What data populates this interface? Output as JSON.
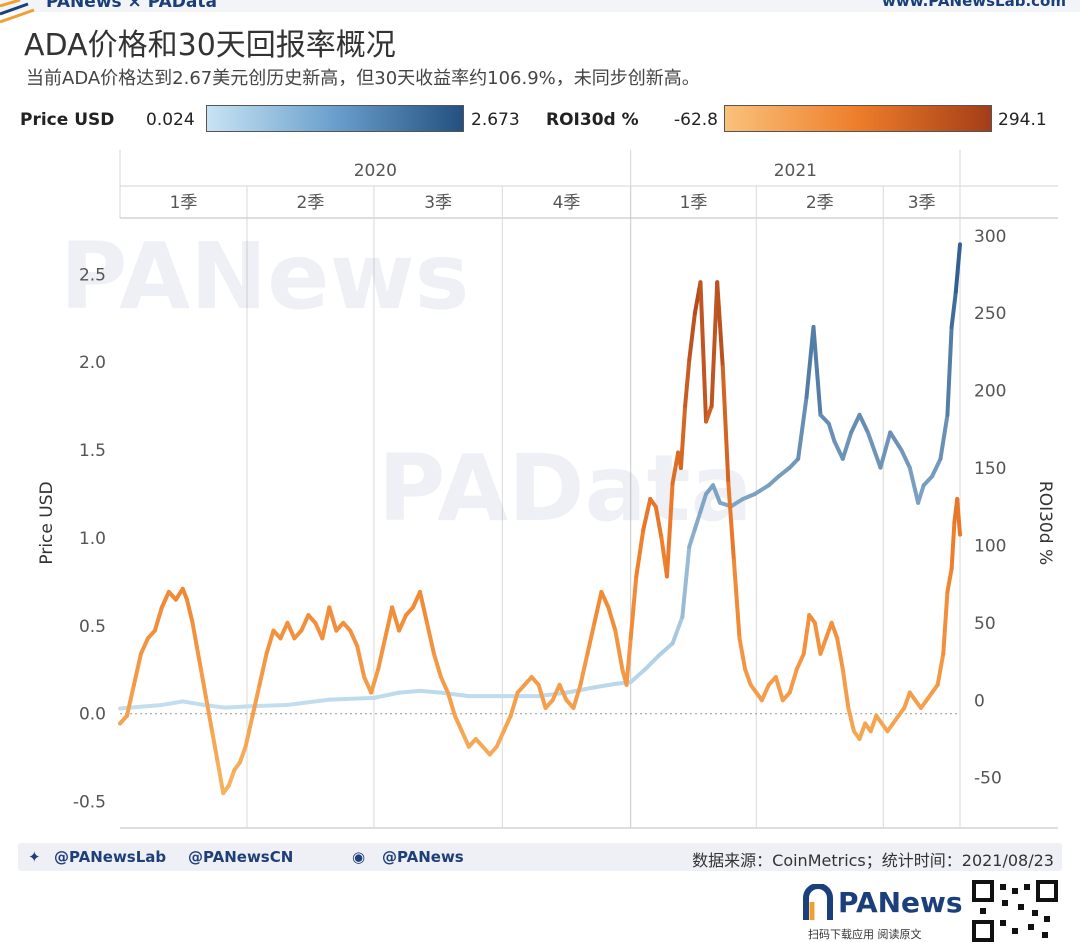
{
  "header": {
    "brand": "PANews × PAData",
    "site": "www.PANewsLab.com"
  },
  "title": "ADA价格和30天回报率概况",
  "subtitle": "当前ADA价格达到2.67美元创历史新高，但30天收益率约106.9%，未同步创新高。",
  "legend": {
    "price_label": "Price USD",
    "price_min": "0.024",
    "price_max": "2.673",
    "roi_label": "ROI30d %",
    "roi_min": "-62.8",
    "roi_max": "294.1"
  },
  "colors": {
    "price_light": "#c3dff0",
    "price_dark": "#2a5a8c",
    "roi_light": "#f7b462",
    "roi_mid": "#ef7f2b",
    "roi_dark": "#a8401a"
  },
  "watermarks": [
    "PANews",
    "PAData"
  ],
  "chart_data": {
    "type": "line",
    "x_unit": "day offset from 2020-01-01",
    "x_range": [
      0,
      602
    ],
    "years": [
      {
        "label": "2020",
        "start": 0,
        "end": 366
      },
      {
        "label": "2021",
        "start": 366,
        "end": 602
      }
    ],
    "quarters": [
      {
        "label": "1季",
        "start": 0,
        "end": 91
      },
      {
        "label": "2季",
        "start": 91,
        "end": 182
      },
      {
        "label": "3季",
        "start": 182,
        "end": 274
      },
      {
        "label": "4季",
        "start": 274,
        "end": 366
      },
      {
        "label": "1季",
        "start": 366,
        "end": 456
      },
      {
        "label": "2季",
        "start": 456,
        "end": 547
      },
      {
        "label": "3季",
        "start": 547,
        "end": 602
      }
    ],
    "y_left": {
      "label": "Price USD",
      "range": [
        -0.65,
        2.82
      ],
      "ticks": [
        -0.5,
        0.0,
        0.5,
        1.0,
        1.5,
        2.0,
        2.5
      ],
      "tick_labels": [
        "-0.5",
        "0.0",
        "0.5",
        "1.0",
        "1.5",
        "2.0",
        "2.5"
      ]
    },
    "y_right": {
      "label": "ROI30d %",
      "range": [
        -82.5,
        311.5
      ],
      "ticks": [
        -50,
        0,
        50,
        100,
        150,
        200,
        250,
        300
      ],
      "tick_labels": [
        "-50",
        "0",
        "50",
        "100",
        "150",
        "200",
        "250",
        "300"
      ]
    },
    "series": [
      {
        "name": "Price USD",
        "axis": "left",
        "points": [
          [
            0,
            0.03
          ],
          [
            30,
            0.05
          ],
          [
            45,
            0.07
          ],
          [
            60,
            0.05
          ],
          [
            75,
            0.035
          ],
          [
            100,
            0.045
          ],
          [
            120,
            0.05
          ],
          [
            150,
            0.08
          ],
          [
            182,
            0.09
          ],
          [
            200,
            0.12
          ],
          [
            215,
            0.13
          ],
          [
            230,
            0.12
          ],
          [
            250,
            0.1
          ],
          [
            270,
            0.1
          ],
          [
            300,
            0.1
          ],
          [
            320,
            0.12
          ],
          [
            340,
            0.15
          ],
          [
            355,
            0.17
          ],
          [
            366,
            0.18
          ],
          [
            376,
            0.25
          ],
          [
            386,
            0.33
          ],
          [
            396,
            0.4
          ],
          [
            403,
            0.55
          ],
          [
            408,
            0.95
          ],
          [
            412,
            1.05
          ],
          [
            416,
            1.15
          ],
          [
            420,
            1.25
          ],
          [
            425,
            1.3
          ],
          [
            430,
            1.2
          ],
          [
            438,
            1.18
          ],
          [
            446,
            1.22
          ],
          [
            455,
            1.25
          ],
          [
            465,
            1.3
          ],
          [
            472,
            1.35
          ],
          [
            480,
            1.4
          ],
          [
            486,
            1.45
          ],
          [
            492,
            1.8
          ],
          [
            497,
            2.2
          ],
          [
            502,
            1.7
          ],
          [
            508,
            1.65
          ],
          [
            512,
            1.55
          ],
          [
            518,
            1.45
          ],
          [
            524,
            1.6
          ],
          [
            530,
            1.7
          ],
          [
            536,
            1.6
          ],
          [
            545,
            1.4
          ],
          [
            552,
            1.6
          ],
          [
            560,
            1.5
          ],
          [
            566,
            1.4
          ],
          [
            572,
            1.2
          ],
          [
            576,
            1.3
          ],
          [
            582,
            1.35
          ],
          [
            588,
            1.45
          ],
          [
            593,
            1.7
          ],
          [
            596,
            2.2
          ],
          [
            599,
            2.4
          ],
          [
            602,
            2.67
          ]
        ]
      },
      {
        "name": "ROI30d %",
        "axis": "right",
        "points": [
          [
            0,
            -15
          ],
          [
            5,
            -10
          ],
          [
            10,
            10
          ],
          [
            15,
            30
          ],
          [
            20,
            40
          ],
          [
            25,
            45
          ],
          [
            30,
            60
          ],
          [
            35,
            70
          ],
          [
            40,
            65
          ],
          [
            45,
            72
          ],
          [
            48,
            65
          ],
          [
            52,
            50
          ],
          [
            55,
            35
          ],
          [
            58,
            20
          ],
          [
            62,
            0
          ],
          [
            66,
            -20
          ],
          [
            70,
            -40
          ],
          [
            74,
            -60
          ],
          [
            78,
            -55
          ],
          [
            82,
            -45
          ],
          [
            86,
            -40
          ],
          [
            90,
            -30
          ],
          [
            95,
            -10
          ],
          [
            100,
            10
          ],
          [
            105,
            30
          ],
          [
            110,
            45
          ],
          [
            115,
            40
          ],
          [
            120,
            50
          ],
          [
            125,
            40
          ],
          [
            130,
            45
          ],
          [
            135,
            55
          ],
          [
            140,
            50
          ],
          [
            145,
            40
          ],
          [
            150,
            60
          ],
          [
            155,
            45
          ],
          [
            160,
            50
          ],
          [
            165,
            45
          ],
          [
            170,
            35
          ],
          [
            175,
            15
          ],
          [
            180,
            5
          ],
          [
            185,
            20
          ],
          [
            190,
            40
          ],
          [
            195,
            60
          ],
          [
            200,
            45
          ],
          [
            205,
            55
          ],
          [
            210,
            60
          ],
          [
            215,
            70
          ],
          [
            220,
            50
          ],
          [
            225,
            30
          ],
          [
            230,
            15
          ],
          [
            235,
            5
          ],
          [
            240,
            -10
          ],
          [
            245,
            -20
          ],
          [
            250,
            -30
          ],
          [
            255,
            -25
          ],
          [
            260,
            -30
          ],
          [
            265,
            -35
          ],
          [
            270,
            -30
          ],
          [
            275,
            -20
          ],
          [
            280,
            -10
          ],
          [
            285,
            5
          ],
          [
            290,
            10
          ],
          [
            295,
            15
          ],
          [
            300,
            10
          ],
          [
            305,
            -5
          ],
          [
            310,
            0
          ],
          [
            315,
            10
          ],
          [
            320,
            0
          ],
          [
            325,
            -5
          ],
          [
            330,
            10
          ],
          [
            335,
            30
          ],
          [
            340,
            50
          ],
          [
            345,
            70
          ],
          [
            350,
            60
          ],
          [
            355,
            45
          ],
          [
            360,
            20
          ],
          [
            363,
            10
          ],
          [
            366,
            40
          ],
          [
            370,
            80
          ],
          [
            375,
            110
          ],
          [
            380,
            130
          ],
          [
            384,
            125
          ],
          [
            388,
            105
          ],
          [
            392,
            80
          ],
          [
            396,
            140
          ],
          [
            400,
            160
          ],
          [
            402,
            150
          ],
          [
            405,
            190
          ],
          [
            408,
            220
          ],
          [
            412,
            250
          ],
          [
            416,
            270
          ],
          [
            420,
            180
          ],
          [
            424,
            190
          ],
          [
            428,
            270
          ],
          [
            432,
            215
          ],
          [
            436,
            140
          ],
          [
            440,
            90
          ],
          [
            444,
            40
          ],
          [
            448,
            20
          ],
          [
            452,
            10
          ],
          [
            456,
            5
          ],
          [
            460,
            0
          ],
          [
            465,
            10
          ],
          [
            470,
            15
          ],
          [
            475,
            0
          ],
          [
            480,
            5
          ],
          [
            485,
            20
          ],
          [
            490,
            30
          ],
          [
            494,
            55
          ],
          [
            498,
            50
          ],
          [
            502,
            30
          ],
          [
            506,
            40
          ],
          [
            510,
            50
          ],
          [
            514,
            40
          ],
          [
            518,
            20
          ],
          [
            522,
            -5
          ],
          [
            526,
            -20
          ],
          [
            530,
            -25
          ],
          [
            534,
            -15
          ],
          [
            538,
            -20
          ],
          [
            542,
            -10
          ],
          [
            546,
            -15
          ],
          [
            550,
            -20
          ],
          [
            554,
            -15
          ],
          [
            558,
            -10
          ],
          [
            562,
            -5
          ],
          [
            566,
            5
          ],
          [
            570,
            0
          ],
          [
            574,
            -5
          ],
          [
            578,
            0
          ],
          [
            582,
            5
          ],
          [
            586,
            10
          ],
          [
            590,
            30
          ],
          [
            593,
            70
          ],
          [
            596,
            85
          ],
          [
            598,
            115
          ],
          [
            600,
            130
          ],
          [
            602,
            107
          ]
        ]
      }
    ],
    "zero_line": true,
    "grid": "vertical quarter lines"
  },
  "footer": {
    "twitter1": "@PANewsLab",
    "twitter2": "@PANewsCN",
    "weibo": "@PANews",
    "source": "数据来源：CoinMetrics；统计时间：2021/08/23"
  },
  "logo": {
    "name": "PANews",
    "tagline": "扫码下载应用 阅读原文"
  }
}
